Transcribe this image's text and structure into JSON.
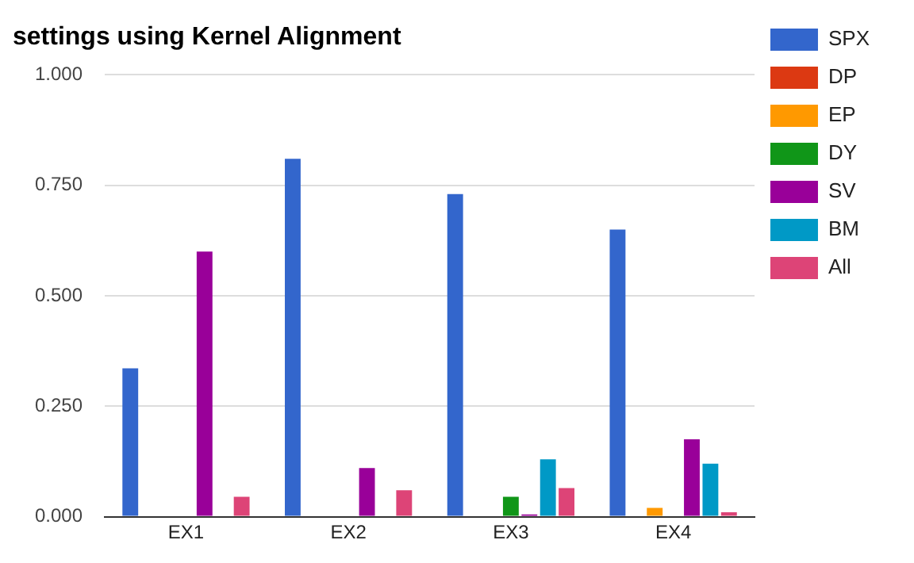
{
  "chart_data": {
    "type": "bar",
    "title": "settings using Kernel Alignment",
    "categories": [
      "EX1",
      "EX2",
      "EX3",
      "EX4"
    ],
    "series": [
      {
        "name": "SPX",
        "color": "#3366cc",
        "values": [
          0.336,
          0.81,
          0.73,
          0.65
        ]
      },
      {
        "name": "DP",
        "color": "#dc3912",
        "values": [
          0,
          0,
          0,
          0
        ]
      },
      {
        "name": "EP",
        "color": "#ff9900",
        "values": [
          0,
          0,
          0,
          0.02
        ]
      },
      {
        "name": "DY",
        "color": "#109618",
        "values": [
          0,
          0,
          0.045,
          0
        ]
      },
      {
        "name": "SV",
        "color": "#990099",
        "values": [
          0.6,
          0.11,
          0.005,
          0.175
        ]
      },
      {
        "name": "BM",
        "color": "#0099c6",
        "values": [
          0,
          0,
          0.13,
          0.12
        ]
      },
      {
        "name": "All",
        "color": "#dd4477",
        "values": [
          0.045,
          0.06,
          0.065,
          0.01
        ]
      }
    ],
    "ylim": [
      0,
      1
    ],
    "yticks": [
      {
        "value": 0,
        "label": "0.000"
      },
      {
        "value": 0.25,
        "label": "0.250"
      },
      {
        "value": 0.5,
        "label": "0.500"
      },
      {
        "value": 0.75,
        "label": "0.750"
      },
      {
        "value": 1,
        "label": "1.000"
      }
    ],
    "grid": "y",
    "legend": "top right"
  }
}
